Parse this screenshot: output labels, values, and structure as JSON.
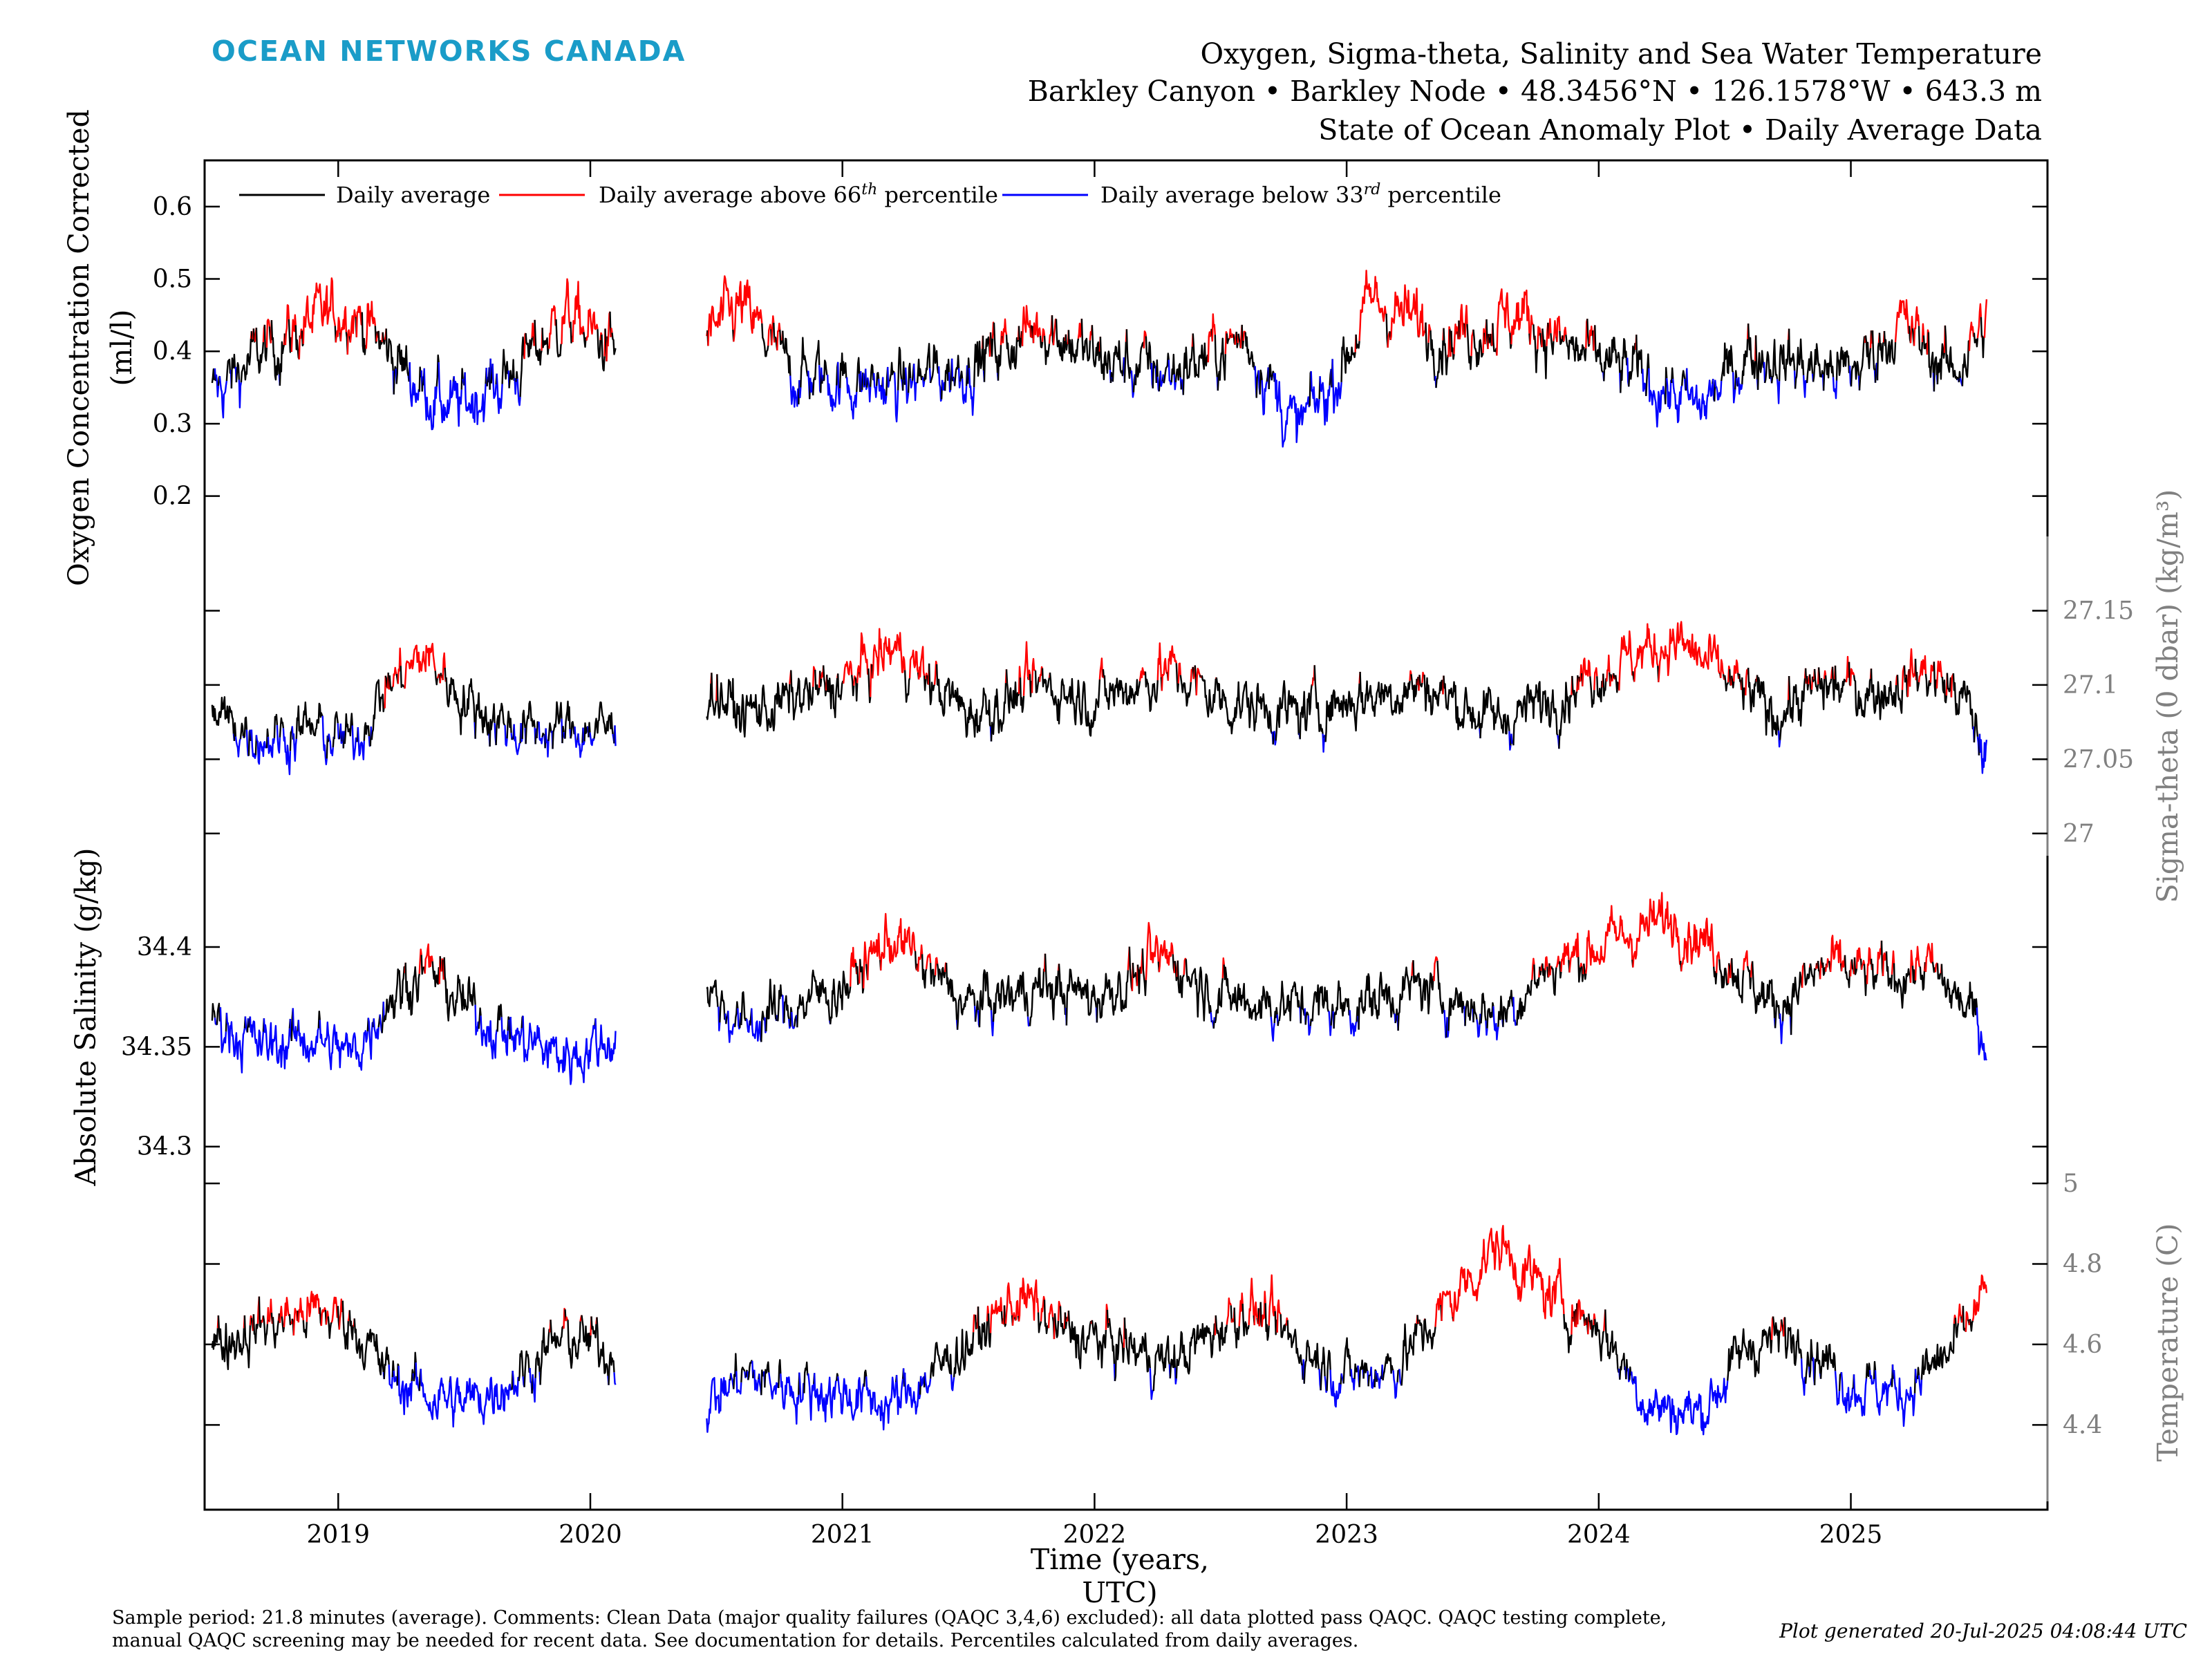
{
  "brand": "OCEAN NETWORKS CANADA",
  "title": {
    "line1": "Oxygen, Sigma-theta, Salinity and Sea Water Temperature",
    "line2": "Barkley Canyon • Barkley Node • 48.3456°N • 126.1578°W • 643.3 m",
    "line3": "State of Ocean Anomaly Plot • Daily Average Data"
  },
  "legend": {
    "black": "Daily average",
    "red_prefix": "Daily average above 66",
    "red_sup": "th",
    "red_suffix": " percentile",
    "blue_prefix": "Daily average below 33",
    "blue_sup": "rd",
    "blue_suffix": " percentile"
  },
  "colors": {
    "normal": "#000000",
    "above": "#ff0000",
    "below": "#0000ff",
    "right_axis": "#808080",
    "brand": "#1a9cc8"
  },
  "footer": {
    "line1": "Sample period: 21.8 minutes (average). Comments: Clean Data (major quality failures (QAQC 3,4,6) excluded): all data plotted pass QAQC. QAQC testing complete,",
    "line2": "manual QAQC screening may be needed for recent data. See documentation for details. Percentiles calculated from daily averages.",
    "generated": "Plot generated 20-Jul-2025 04:08:44 UTC"
  },
  "chart_data": {
    "type": "line",
    "xlabel": "Time (years, UTC)",
    "xlim": [
      2018.47,
      2025.78
    ],
    "x_ticks": [
      "2019",
      "2020",
      "2021",
      "2022",
      "2023",
      "2024",
      "2025"
    ],
    "data_gap": [
      2020.1,
      2020.46
    ],
    "data_end": 2025.54,
    "panels": [
      {
        "ylabel_lines": [
          "Oxygen Concentration Corrected",
          "(ml/l)"
        ],
        "axis_side": "left",
        "ylim": [
          0.15,
          0.66
        ],
        "ticks": [
          "0.2",
          "0.3",
          "0.4",
          "0.5",
          "0.6"
        ],
        "tick_values": [
          0.2,
          0.3,
          0.4,
          0.5,
          0.6
        ],
        "low_threshold": 0.36,
        "high_threshold": 0.42,
        "anchors": [
          [
            2018.5,
            0.34
          ],
          [
            2018.7,
            0.4
          ],
          [
            2018.9,
            0.44
          ],
          [
            2019.05,
            0.46
          ],
          [
            2019.3,
            0.36
          ],
          [
            2019.45,
            0.32
          ],
          [
            2019.7,
            0.37
          ],
          [
            2019.9,
            0.45
          ],
          [
            2020.1,
            0.4
          ],
          [
            2020.46,
            0.42
          ],
          [
            2020.6,
            0.46
          ],
          [
            2020.8,
            0.37
          ],
          [
            2021.0,
            0.36
          ],
          [
            2021.2,
            0.35
          ],
          [
            2021.5,
            0.38
          ],
          [
            2021.8,
            0.44
          ],
          [
            2022.0,
            0.39
          ],
          [
            2022.3,
            0.37
          ],
          [
            2022.6,
            0.42
          ],
          [
            2022.8,
            0.29
          ],
          [
            2022.95,
            0.36
          ],
          [
            2023.1,
            0.47
          ],
          [
            2023.4,
            0.42
          ],
          [
            2023.7,
            0.45
          ],
          [
            2023.9,
            0.4
          ],
          [
            2024.2,
            0.36
          ],
          [
            2024.4,
            0.32
          ],
          [
            2024.6,
            0.4
          ],
          [
            2024.8,
            0.38
          ],
          [
            2025.0,
            0.37
          ],
          [
            2025.2,
            0.44
          ],
          [
            2025.4,
            0.37
          ],
          [
            2025.54,
            0.44
          ]
        ]
      },
      {
        "ylabel_lines": [
          "Sigma-theta (0 dbar) (kg/m³)"
        ],
        "axis_side": "right",
        "ylim": [
          26.985,
          27.2
        ],
        "ticks": [
          "27",
          "27.05",
          "27.1",
          "27.15"
        ],
        "tick_values": [
          27.0,
          27.05,
          27.1,
          27.15
        ],
        "low_threshold": 27.065,
        "high_threshold": 27.105,
        "anchors": [
          [
            2018.5,
            27.08
          ],
          [
            2018.7,
            27.065
          ],
          [
            2018.9,
            27.07
          ],
          [
            2019.05,
            27.06
          ],
          [
            2019.2,
            27.1
          ],
          [
            2019.35,
            27.12
          ],
          [
            2019.5,
            27.09
          ],
          [
            2019.7,
            27.07
          ],
          [
            2019.9,
            27.07
          ],
          [
            2020.1,
            27.07
          ],
          [
            2020.46,
            27.1
          ],
          [
            2020.6,
            27.08
          ],
          [
            2020.8,
            27.09
          ],
          [
            2021.0,
            27.1
          ],
          [
            2021.2,
            27.125
          ],
          [
            2021.5,
            27.08
          ],
          [
            2021.8,
            27.1
          ],
          [
            2022.0,
            27.09
          ],
          [
            2022.3,
            27.11
          ],
          [
            2022.5,
            27.09
          ],
          [
            2022.8,
            27.08
          ],
          [
            2023.0,
            27.09
          ],
          [
            2023.3,
            27.1
          ],
          [
            2023.6,
            27.075
          ],
          [
            2023.8,
            27.09
          ],
          [
            2024.0,
            27.11
          ],
          [
            2024.3,
            27.13
          ],
          [
            2024.5,
            27.105
          ],
          [
            2024.7,
            27.08
          ],
          [
            2024.9,
            27.1
          ],
          [
            2025.1,
            27.095
          ],
          [
            2025.3,
            27.11
          ],
          [
            2025.45,
            27.09
          ],
          [
            2025.54,
            27.05
          ]
        ]
      },
      {
        "ylabel_lines": [
          "Absolute Salinity (g/kg)"
        ],
        "axis_side": "left",
        "ylim": [
          34.285,
          34.445
        ],
        "ticks": [
          "34.3",
          "34.35",
          "34.4"
        ],
        "tick_values": [
          34.3,
          34.35,
          34.4
        ],
        "low_threshold": 34.363,
        "high_threshold": 34.39,
        "anchors": [
          [
            2018.5,
            34.365
          ],
          [
            2018.7,
            34.35
          ],
          [
            2018.9,
            34.355
          ],
          [
            2019.05,
            34.345
          ],
          [
            2019.2,
            34.375
          ],
          [
            2019.35,
            34.39
          ],
          [
            2019.5,
            34.37
          ],
          [
            2019.7,
            34.355
          ],
          [
            2019.9,
            34.345
          ],
          [
            2020.1,
            34.355
          ],
          [
            2020.46,
            34.38
          ],
          [
            2020.6,
            34.36
          ],
          [
            2020.8,
            34.37
          ],
          [
            2021.0,
            34.38
          ],
          [
            2021.2,
            34.405
          ],
          [
            2021.5,
            34.37
          ],
          [
            2021.8,
            34.38
          ],
          [
            2022.0,
            34.375
          ],
          [
            2022.3,
            34.395
          ],
          [
            2022.5,
            34.375
          ],
          [
            2022.8,
            34.37
          ],
          [
            2023.0,
            34.37
          ],
          [
            2023.3,
            34.38
          ],
          [
            2023.6,
            34.365
          ],
          [
            2023.8,
            34.39
          ],
          [
            2024.0,
            34.4
          ],
          [
            2024.3,
            34.415
          ],
          [
            2024.5,
            34.395
          ],
          [
            2024.7,
            34.37
          ],
          [
            2024.9,
            34.39
          ],
          [
            2025.1,
            34.385
          ],
          [
            2025.3,
            34.39
          ],
          [
            2025.45,
            34.37
          ],
          [
            2025.54,
            34.355
          ]
        ]
      },
      {
        "ylabel_lines": [
          "Temperature (C)"
        ],
        "axis_side": "right",
        "ylim": [
          4.21,
          5.0
        ],
        "ticks": [
          "4.4",
          "4.6",
          "4.8",
          "5"
        ],
        "tick_values": [
          4.4,
          4.6,
          4.8,
          5.0
        ],
        "low_threshold": 4.52,
        "high_threshold": 4.66,
        "anchors": [
          [
            2018.5,
            4.6
          ],
          [
            2018.7,
            4.65
          ],
          [
            2018.9,
            4.68
          ],
          [
            2019.05,
            4.66
          ],
          [
            2019.2,
            4.52
          ],
          [
            2019.35,
            4.48
          ],
          [
            2019.5,
            4.45
          ],
          [
            2019.7,
            4.52
          ],
          [
            2019.9,
            4.62
          ],
          [
            2020.1,
            4.58
          ],
          [
            2020.46,
            4.45
          ],
          [
            2020.6,
            4.52
          ],
          [
            2020.8,
            4.5
          ],
          [
            2021.0,
            4.48
          ],
          [
            2021.2,
            4.45
          ],
          [
            2021.5,
            4.6
          ],
          [
            2021.7,
            4.72
          ],
          [
            2021.9,
            4.62
          ],
          [
            2022.1,
            4.6
          ],
          [
            2022.3,
            4.55
          ],
          [
            2022.45,
            4.62
          ],
          [
            2022.6,
            4.7
          ],
          [
            2022.8,
            4.6
          ],
          [
            2023.0,
            4.52
          ],
          [
            2023.2,
            4.55
          ],
          [
            2023.4,
            4.7
          ],
          [
            2023.6,
            4.85
          ],
          [
            2023.8,
            4.72
          ],
          [
            2024.0,
            4.65
          ],
          [
            2024.2,
            4.45
          ],
          [
            2024.4,
            4.43
          ],
          [
            2024.6,
            4.6
          ],
          [
            2024.8,
            4.62
          ],
          [
            2025.0,
            4.5
          ],
          [
            2025.2,
            4.48
          ],
          [
            2025.4,
            4.58
          ],
          [
            2025.54,
            4.73
          ]
        ]
      }
    ]
  }
}
